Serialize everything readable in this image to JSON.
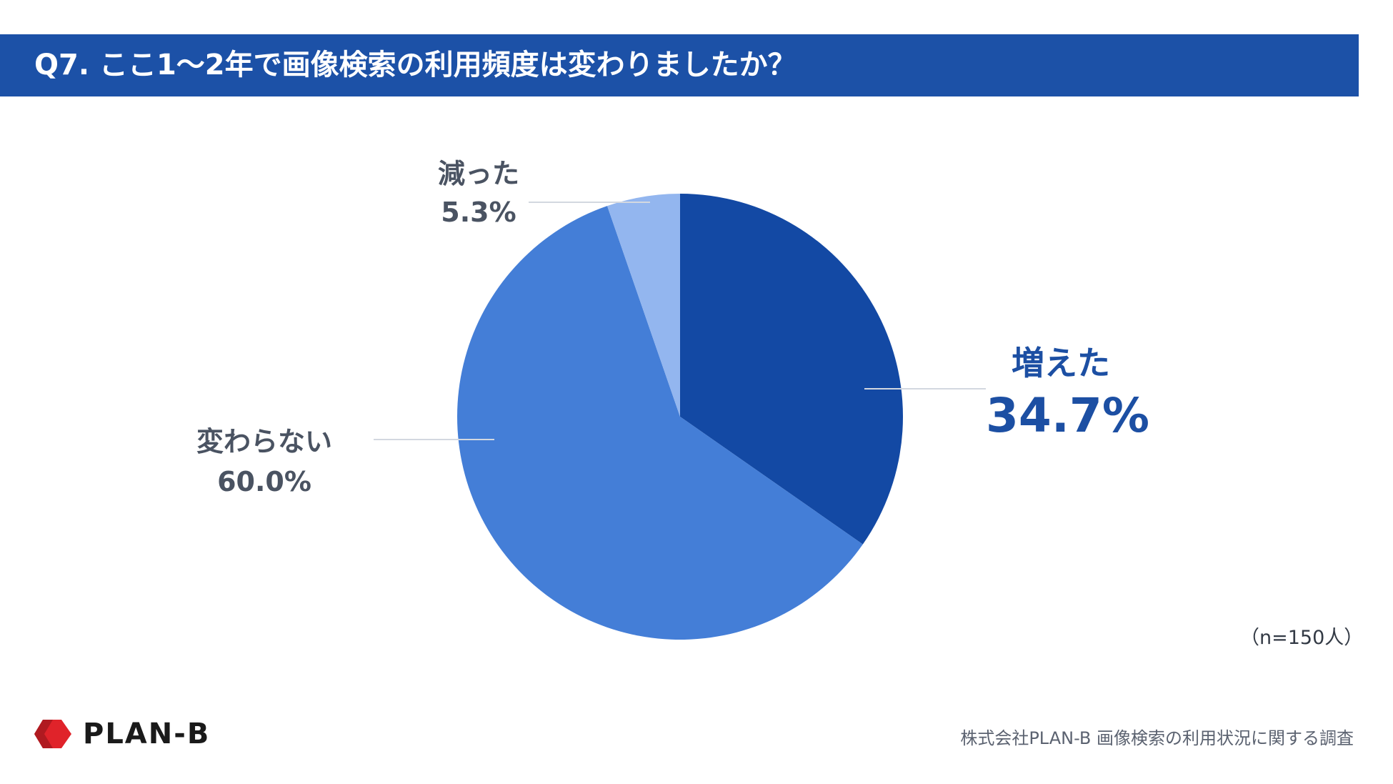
{
  "header": {
    "title": "Q7. ここ1〜2年で画像検索の利用頻度は変わりましたか？"
  },
  "chart_data": {
    "type": "pie",
    "title": "Q7. ここ1〜2年で画像検索の利用頻度は変わりましたか？",
    "slices": [
      {
        "label": "増えた",
        "value": 34.7,
        "value_label": "34.7%",
        "color": "#1349a4"
      },
      {
        "label": "変わらない",
        "value": 60.0,
        "value_label": "60.0%",
        "color": "#447ed7"
      },
      {
        "label": "減った",
        "value": 5.3,
        "value_label": "5.3%",
        "color": "#93b6ef"
      }
    ],
    "start": "12 o'clock",
    "direction": "clockwise",
    "sample_note": "（n=150人）"
  },
  "colors": {
    "header_bg": "#1c51a7",
    "leader_line": "#d3d8e0",
    "label_gray": "#4a5362",
    "label_blue": "#1c4fa3",
    "logo_red": "#e0232a"
  },
  "footer": {
    "logo_text": "PLAN-B",
    "logo_icon": "plan-b-logo-icon",
    "source": "株式会社PLAN-B 画像検索の利用状況に関する調査"
  }
}
